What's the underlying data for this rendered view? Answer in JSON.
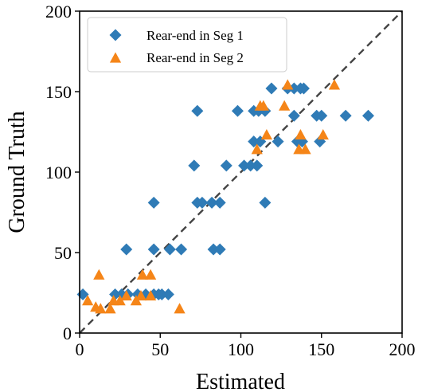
{
  "chart_data": {
    "type": "scatter",
    "title": "",
    "xlabel": "Estimated",
    "ylabel": "Ground Truth",
    "xlim": [
      0,
      200
    ],
    "ylim": [
      0,
      200
    ],
    "xticks": [
      "0",
      "50",
      "100",
      "150",
      "200"
    ],
    "yticks": [
      "0",
      "50",
      "100",
      "150",
      "200"
    ],
    "grid": false,
    "legend_position": "top-left",
    "reference_line": {
      "style": "dashed",
      "color": "#444444",
      "from": [
        0,
        0
      ],
      "to": [
        200,
        200
      ]
    },
    "series": [
      {
        "name": "Rear-end in Seg 1",
        "marker": "diamond",
        "color": "#2f7bb6",
        "points": [
          [
            2,
            24
          ],
          [
            22,
            24
          ],
          [
            26,
            24
          ],
          [
            30,
            24
          ],
          [
            36,
            24
          ],
          [
            41,
            24
          ],
          [
            46,
            24
          ],
          [
            49,
            24
          ],
          [
            51,
            24
          ],
          [
            55,
            24
          ],
          [
            29,
            52
          ],
          [
            46,
            52
          ],
          [
            56,
            52
          ],
          [
            63,
            52
          ],
          [
            83,
            52
          ],
          [
            87,
            52
          ],
          [
            46,
            81
          ],
          [
            73,
            81
          ],
          [
            76,
            81
          ],
          [
            82,
            81
          ],
          [
            87,
            81
          ],
          [
            115,
            81
          ],
          [
            71,
            104
          ],
          [
            91,
            104
          ],
          [
            102,
            104
          ],
          [
            106,
            104
          ],
          [
            110,
            104
          ],
          [
            108,
            119
          ],
          [
            112,
            119
          ],
          [
            123,
            119
          ],
          [
            135,
            119
          ],
          [
            138,
            119
          ],
          [
            149,
            119
          ],
          [
            73,
            138
          ],
          [
            98,
            138
          ],
          [
            108,
            138
          ],
          [
            111,
            138
          ],
          [
            115,
            138
          ],
          [
            133,
            135
          ],
          [
            147,
            135
          ],
          [
            150,
            135
          ],
          [
            165,
            135
          ],
          [
            179,
            135
          ],
          [
            119,
            152
          ],
          [
            129,
            152
          ],
          [
            133,
            152
          ],
          [
            137,
            152
          ],
          [
            139,
            152
          ]
        ]
      },
      {
        "name": "Rear-end in Seg 2",
        "marker": "triangle",
        "color": "#f58518",
        "points": [
          [
            5,
            20
          ],
          [
            10,
            16
          ],
          [
            13,
            15
          ],
          [
            12,
            36
          ],
          [
            19,
            15
          ],
          [
            21,
            20
          ],
          [
            25,
            20
          ],
          [
            29,
            23
          ],
          [
            35,
            20
          ],
          [
            38,
            23
          ],
          [
            39,
            36
          ],
          [
            44,
            23
          ],
          [
            44,
            36
          ],
          [
            62,
            15
          ],
          [
            110,
            114
          ],
          [
            112,
            141
          ],
          [
            114,
            141
          ],
          [
            116,
            123
          ],
          [
            127,
            141
          ],
          [
            129,
            154
          ],
          [
            136,
            114
          ],
          [
            137,
            123
          ],
          [
            140,
            114
          ],
          [
            151,
            123
          ],
          [
            158,
            154
          ]
        ]
      }
    ]
  }
}
